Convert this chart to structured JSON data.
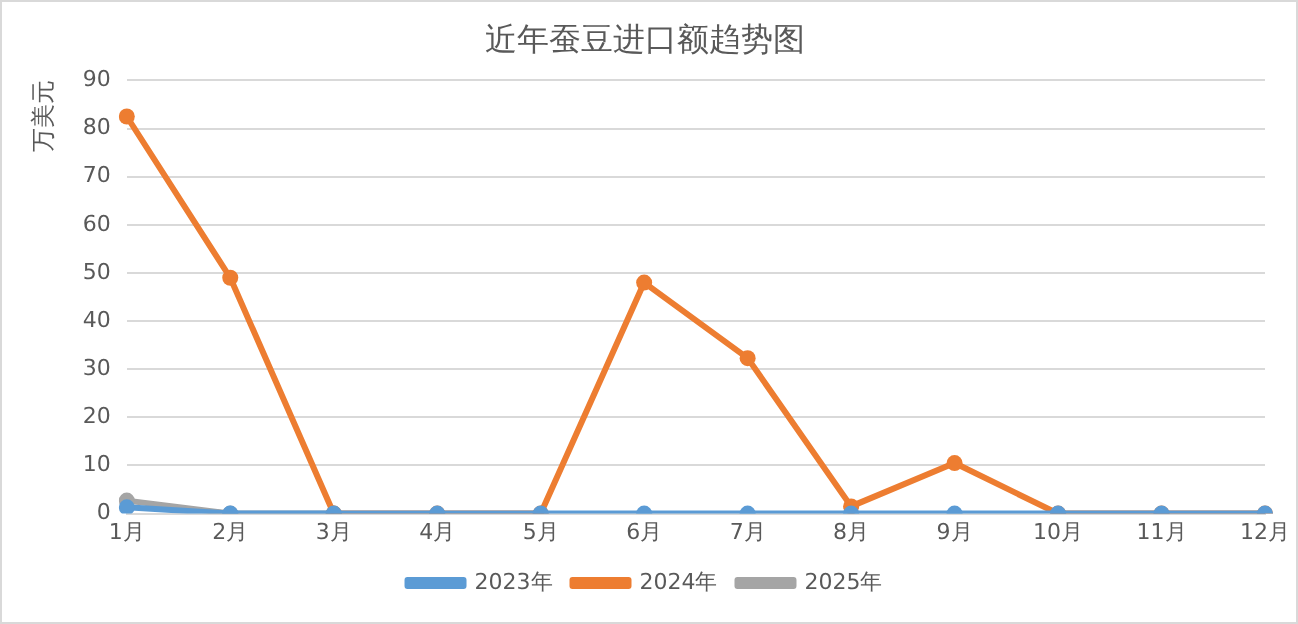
{
  "chart_data": {
    "type": "line",
    "title": "近年蚕豆进口额趋势图",
    "ylabel": "万美元",
    "categories": [
      "1月",
      "2月",
      "3月",
      "4月",
      "5月",
      "6月",
      "7月",
      "8月",
      "9月",
      "10月",
      "11月",
      "12月"
    ],
    "series": [
      {
        "name": "2023年",
        "color": "#5b9bd5",
        "values": [
          1.3,
          0,
          0,
          0,
          0,
          0,
          0,
          0,
          0,
          0,
          0,
          0
        ]
      },
      {
        "name": "2024年",
        "color": "#ed7d31",
        "values": [
          82.5,
          49,
          0,
          0,
          0,
          48,
          32.3,
          1.5,
          10.5,
          0,
          0,
          0
        ]
      },
      {
        "name": "2025年",
        "color": "#a5a5a5",
        "values": [
          2.7,
          0,
          0,
          null,
          null,
          null,
          null,
          null,
          null,
          null,
          null,
          null
        ]
      }
    ],
    "ylim": [
      0,
      90
    ],
    "yticks": [
      0,
      10,
      20,
      30,
      40,
      50,
      60,
      70,
      80,
      90
    ],
    "grid": "y",
    "legend": "bottom",
    "marker": "circle",
    "line_style": "solid"
  }
}
